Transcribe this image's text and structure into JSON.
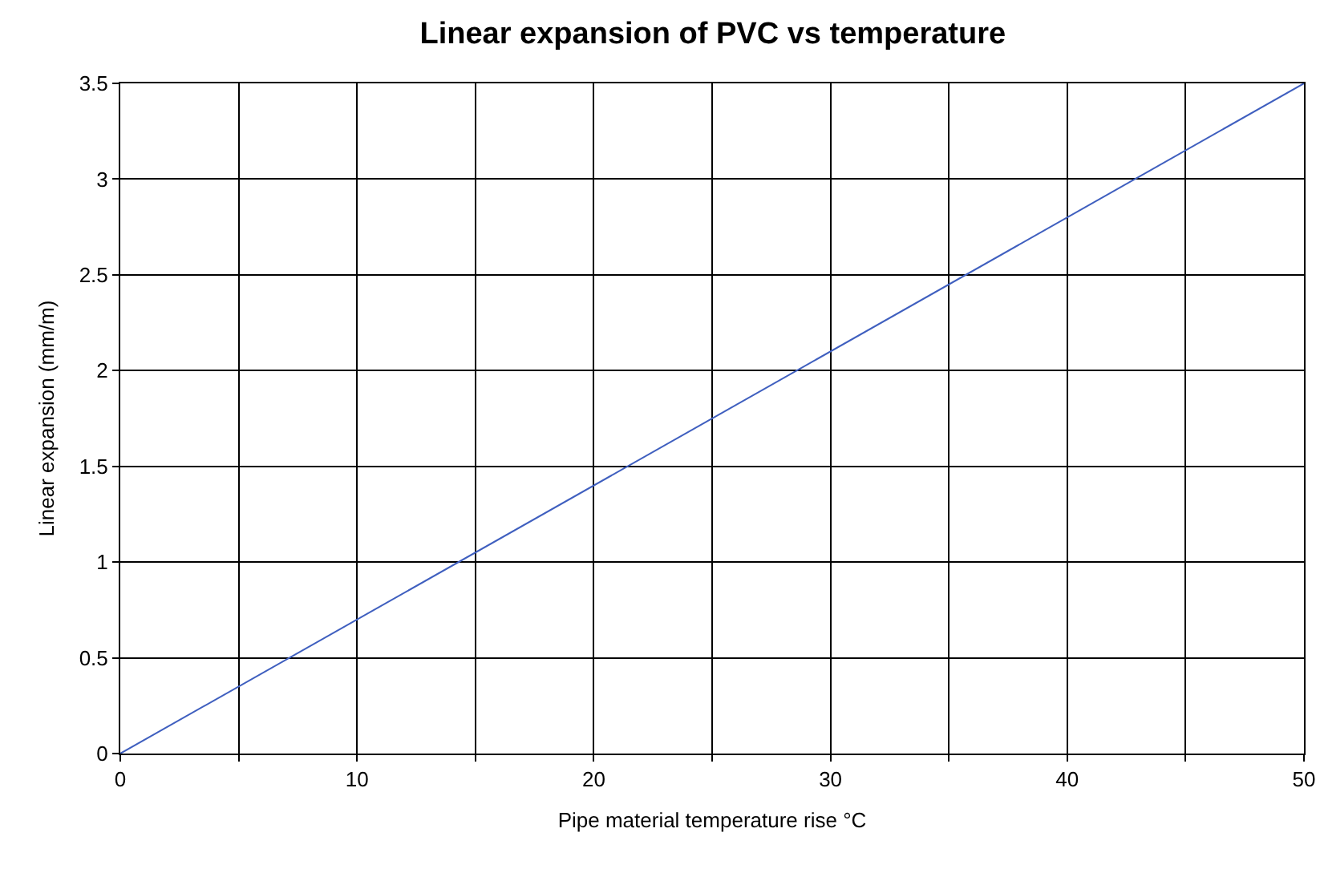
{
  "chart_data": {
    "type": "line",
    "title": "Linear expansion of PVC vs temperature",
    "xlabel": "Pipe material temperature rise °C",
    "ylabel": "Linear expansion (mm/m)",
    "x": [
      0,
      50
    ],
    "series": [
      {
        "color": "#3f5fbf",
        "values": [
          0,
          3.5
        ]
      }
    ],
    "xlim": [
      0,
      50
    ],
    "xticks": [
      0,
      {
        "value": 5,
        "label": null
      },
      10,
      {
        "value": 15,
        "label": null
      },
      20,
      {
        "value": 25,
        "label": null
      },
      30,
      {
        "value": 35,
        "label": null
      },
      40,
      {
        "value": 45,
        "label": null
      },
      50
    ],
    "ylim": [
      0,
      3.5
    ],
    "yticks": [
      0,
      0.5,
      1,
      1.5,
      2,
      2.5,
      3,
      3.5
    ],
    "grid": true,
    "marker": "none",
    "line_style": "solid"
  }
}
